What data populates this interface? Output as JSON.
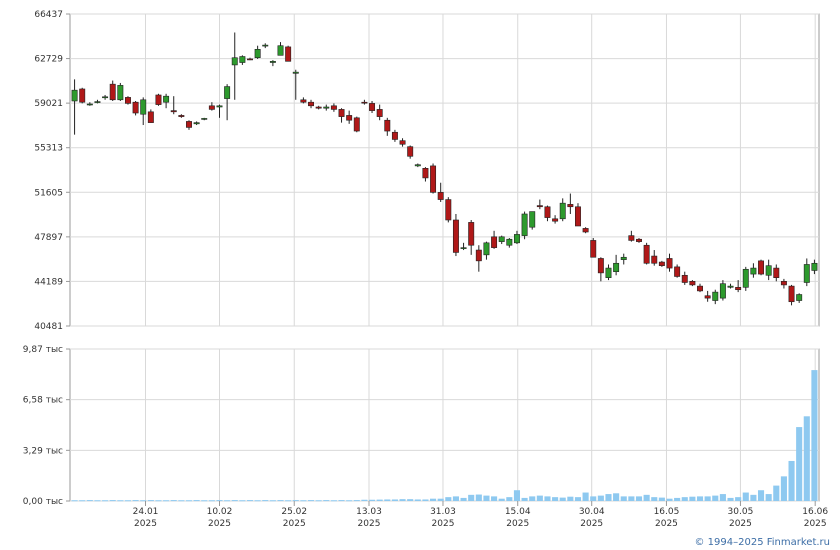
{
  "copyright": "© 1994–2025 Finmarket.ru",
  "colors": {
    "up": "#2d9a2d",
    "down": "#b01818",
    "volume": "#8ec9f0",
    "grid": "#d9d9d9",
    "axis": "#999999"
  },
  "chart_data": [
    {
      "type": "candlestick",
      "y_ticks": [
        "66437",
        "62729",
        "59021",
        "55313",
        "51605",
        "47897",
        "44189",
        "40481"
      ],
      "y_tick_values": [
        66437,
        62729,
        59021,
        55313,
        51605,
        47897,
        44189,
        40481
      ],
      "ylim": [
        40481,
        66437
      ],
      "grid": true,
      "candles": [
        [
          59200,
          61000,
          56400,
          60100
        ],
        [
          60200,
          60300,
          59000,
          59100
        ],
        [
          58900,
          59100,
          58800,
          58950
        ],
        [
          59100,
          59300,
          59000,
          59150
        ],
        [
          59500,
          59700,
          59300,
          59550
        ],
        [
          60600,
          60900,
          59200,
          59300
        ],
        [
          59300,
          60700,
          59200,
          60500
        ],
        [
          59500,
          59600,
          58900,
          59000
        ],
        [
          59100,
          59200,
          58000,
          58200
        ],
        [
          58100,
          59500,
          57200,
          59300
        ],
        [
          58300,
          58500,
          57400,
          57400
        ],
        [
          59700,
          59800,
          58800,
          58900
        ],
        [
          59100,
          59800,
          58600,
          59600
        ],
        [
          58400,
          59600,
          58100,
          58300
        ],
        [
          58000,
          58100,
          57800,
          57900
        ],
        [
          57500,
          57600,
          56800,
          57000
        ],
        [
          57300,
          57500,
          57200,
          57400
        ],
        [
          57700,
          57800,
          57600,
          57750
        ],
        [
          58800,
          59100,
          58400,
          58500
        ],
        [
          58700,
          58900,
          57800,
          58800
        ],
        [
          59400,
          60600,
          57600,
          60400
        ],
        [
          62200,
          64900,
          59300,
          62800
        ],
        [
          62400,
          63000,
          62200,
          62900
        ],
        [
          62700,
          62800,
          62600,
          62650
        ],
        [
          62800,
          63800,
          62700,
          63500
        ],
        [
          63800,
          64000,
          63600,
          63850
        ],
        [
          62400,
          62600,
          62100,
          62500
        ],
        [
          63000,
          64100,
          63000,
          63800
        ],
        [
          63700,
          63800,
          62500,
          62500
        ],
        [
          61500,
          61800,
          59300,
          61600
        ],
        [
          59300,
          59500,
          59000,
          59100
        ],
        [
          59100,
          59300,
          58600,
          58800
        ],
        [
          58700,
          58800,
          58500,
          58600
        ],
        [
          58600,
          58900,
          58400,
          58700
        ],
        [
          58800,
          59000,
          58300,
          58500
        ],
        [
          58500,
          58600,
          57400,
          57900
        ],
        [
          58000,
          58400,
          57300,
          57600
        ],
        [
          57800,
          57900,
          56600,
          56700
        ],
        [
          59100,
          59300,
          58900,
          59050
        ],
        [
          59000,
          59200,
          58200,
          58400
        ],
        [
          58500,
          58900,
          57600,
          57900
        ],
        [
          57600,
          57800,
          56300,
          56700
        ],
        [
          56600,
          56800,
          55800,
          56000
        ],
        [
          55900,
          56100,
          55400,
          55600
        ],
        [
          55400,
          55500,
          54400,
          54600
        ],
        [
          53800,
          54000,
          53700,
          53900
        ],
        [
          53600,
          53700,
          52500,
          52800
        ],
        [
          53800,
          54000,
          51500,
          51600
        ],
        [
          51600,
          52400,
          50800,
          51000
        ],
        [
          51000,
          51200,
          49100,
          49300
        ],
        [
          49300,
          49800,
          46300,
          46600
        ],
        [
          47000,
          47400,
          46800,
          47000
        ],
        [
          49100,
          49300,
          46400,
          47200
        ],
        [
          46800,
          47200,
          45000,
          45900
        ],
        [
          46400,
          47500,
          46000,
          47400
        ],
        [
          47900,
          48400,
          46900,
          47000
        ],
        [
          47500,
          48000,
          47300,
          47900
        ],
        [
          47200,
          47800,
          47000,
          47700
        ],
        [
          47400,
          48400,
          47300,
          48100
        ],
        [
          48000,
          50000,
          47700,
          49800
        ],
        [
          48700,
          50000,
          48500,
          50000
        ],
        [
          50500,
          51000,
          50200,
          50400
        ],
        [
          50400,
          50500,
          49200,
          49500
        ],
        [
          49400,
          49700,
          49000,
          49200
        ],
        [
          49400,
          51100,
          49200,
          50700
        ],
        [
          50600,
          51500,
          49800,
          50400
        ],
        [
          50400,
          50700,
          48800,
          48800
        ],
        [
          48600,
          48700,
          48200,
          48300
        ],
        [
          47600,
          47800,
          46200,
          46200
        ],
        [
          46100,
          46200,
          44200,
          44900
        ],
        [
          44500,
          45600,
          44300,
          45300
        ],
        [
          45000,
          46400,
          44700,
          45700
        ],
        [
          46000,
          46500,
          45600,
          46200
        ],
        [
          48000,
          48400,
          47500,
          47600
        ],
        [
          47700,
          47800,
          47400,
          47500
        ],
        [
          47200,
          47400,
          45600,
          45700
        ],
        [
          46300,
          46800,
          45500,
          45700
        ],
        [
          45800,
          45900,
          45400,
          45500
        ],
        [
          46100,
          46500,
          45000,
          45300
        ],
        [
          45400,
          45600,
          44500,
          44600
        ],
        [
          44700,
          45000,
          43900,
          44100
        ],
        [
          44200,
          44300,
          43800,
          43900
        ],
        [
          43800,
          44000,
          43300,
          43400
        ],
        [
          43000,
          43400,
          42500,
          42800
        ],
        [
          42600,
          43500,
          42300,
          43300
        ],
        [
          42800,
          44300,
          42600,
          44000
        ],
        [
          43700,
          44000,
          43600,
          43800
        ],
        [
          43700,
          44300,
          43300,
          43500
        ],
        [
          43700,
          45400,
          43400,
          45200
        ],
        [
          44800,
          45700,
          44500,
          45300
        ],
        [
          45900,
          46000,
          44700,
          44800
        ],
        [
          44700,
          46000,
          44300,
          45500
        ],
        [
          45300,
          45600,
          44200,
          44500
        ],
        [
          44200,
          44400,
          43600,
          43900
        ],
        [
          43800,
          43900,
          42200,
          42500
        ],
        [
          42600,
          43200,
          42400,
          43100
        ],
        [
          44100,
          46100,
          43800,
          45600
        ],
        [
          45100,
          46000,
          44800,
          45700
        ]
      ]
    },
    {
      "type": "bar",
      "y_ticks": [
        "9,87 тыс",
        "6,58 тыс",
        "3,29 тыс",
        "0,00 тыс"
      ],
      "y_tick_values": [
        9.87,
        6.58,
        3.29,
        0
      ],
      "ylim": [
        0,
        9.87
      ],
      "grid": true,
      "x_ticks": [
        [
          "24.01",
          "2025"
        ],
        [
          "10.02",
          "2025"
        ],
        [
          "25.02",
          "2025"
        ],
        [
          "13.03",
          "2025"
        ],
        [
          "31.03",
          "2025"
        ],
        [
          "15.04",
          "2025"
        ],
        [
          "30.04",
          "2025"
        ],
        [
          "16.05",
          "2025"
        ],
        [
          "30.05",
          "2025"
        ],
        [
          "16.06",
          "2025"
        ]
      ],
      "x_tick_index": [
        9.3,
        19.0,
        28.8,
        38.6,
        48.3,
        58.1,
        67.8,
        77.6,
        87.3,
        97.1
      ],
      "values": [
        0.05,
        0.05,
        0.06,
        0.05,
        0.05,
        0.06,
        0.05,
        0.05,
        0.06,
        0.05,
        0.06,
        0.05,
        0.05,
        0.06,
        0.05,
        0.05,
        0.06,
        0.05,
        0.05,
        0.06,
        0.05,
        0.06,
        0.05,
        0.06,
        0.05,
        0.06,
        0.05,
        0.06,
        0.05,
        0.06,
        0.05,
        0.06,
        0.05,
        0.06,
        0.05,
        0.06,
        0.05,
        0.06,
        0.08,
        0.08,
        0.09,
        0.1,
        0.1,
        0.12,
        0.12,
        0.1,
        0.1,
        0.15,
        0.15,
        0.25,
        0.3,
        0.2,
        0.4,
        0.42,
        0.35,
        0.3,
        0.15,
        0.25,
        0.7,
        0.2,
        0.3,
        0.35,
        0.3,
        0.25,
        0.22,
        0.28,
        0.25,
        0.55,
        0.3,
        0.35,
        0.45,
        0.5,
        0.3,
        0.3,
        0.3,
        0.4,
        0.25,
        0.22,
        0.15,
        0.2,
        0.25,
        0.28,
        0.3,
        0.3,
        0.35,
        0.45,
        0.2,
        0.25,
        0.55,
        0.4,
        0.7,
        0.45,
        1.0,
        1.6,
        2.6,
        4.8,
        5.5,
        8.5
      ]
    }
  ]
}
